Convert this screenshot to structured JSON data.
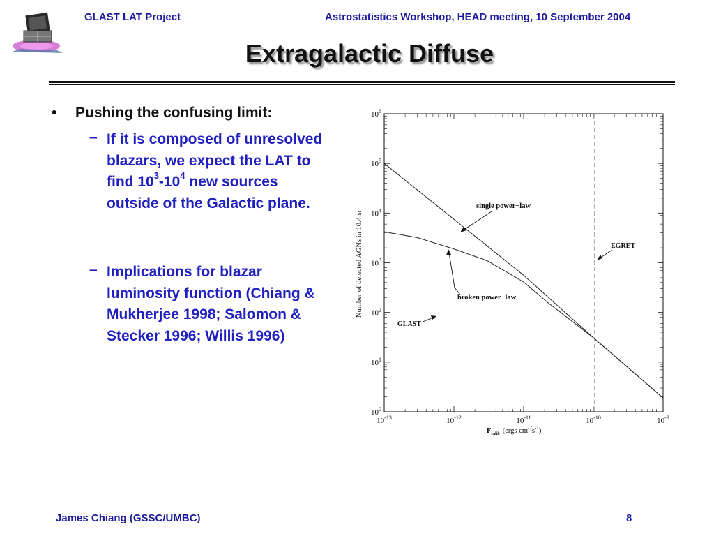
{
  "header": {
    "left": "GLAST LAT Project",
    "right": "Astrostatistics Workshop, HEAD meeting, 10 September 2004"
  },
  "title": "Extragalactic Diffuse",
  "bullet": {
    "symbol": "•",
    "text": "Pushing the confusing limit:",
    "subs": [
      {
        "dash": "–",
        "before": "If it is composed of unresolved blazars, we expect the LAT to find ",
        "base1": "10",
        "exp1": "3",
        "mid": "-",
        "base2": "10",
        "exp2": "4",
        "after": " new sources outside of the Galactic plane."
      },
      {
        "dash": "–",
        "text": "Implications for blazar luminosity function (Chiang & Mukherjee 1998; Salomon & Stecker 1996; Willis 1996)"
      }
    ]
  },
  "footer": {
    "left": "James Chiang (GSSC/UMBC)",
    "right": "8"
  },
  "colors": {
    "header_blue": "#1a1a9e",
    "sub_blue": "#2020c0"
  },
  "chart_data": {
    "type": "line",
    "xscale": "log",
    "yscale": "log",
    "xlim": [
      1e-13,
      1e-09
    ],
    "ylim": [
      1,
      1000000
    ],
    "ylabel": "Number of detected AGNs in 10.4 sr",
    "xlabel_main": "F",
    "xlabel_sub": "calib",
    "xlabel_units": "(ergs cm",
    "xlabel_exp1": "-2",
    "xlabel_s": "s",
    "xlabel_exp2": "-1",
    "xlabel_close": ")",
    "xticks": [
      {
        "base": "10",
        "exp": "-13"
      },
      {
        "base": "10",
        "exp": "-12"
      },
      {
        "base": "10",
        "exp": "-11"
      },
      {
        "base": "10",
        "exp": "-10"
      },
      {
        "base": "10",
        "exp": "-9"
      }
    ],
    "yticks": [
      {
        "base": "10",
        "exp": "0"
      },
      {
        "base": "10",
        "exp": "1"
      },
      {
        "base": "10",
        "exp": "2"
      },
      {
        "base": "10",
        "exp": "3"
      },
      {
        "base": "10",
        "exp": "4"
      },
      {
        "base": "10",
        "exp": "5"
      },
      {
        "base": "10",
        "exp": "6"
      }
    ],
    "series": [
      {
        "x": [
          1e-13,
          1e-12,
          1e-11,
          1e-10,
          1e-09
        ],
        "y": [
          100000,
          7500,
          560,
          31,
          1.9
        ]
      },
      {
        "x": [
          1e-13,
          3e-13,
          1e-12,
          3e-12,
          1e-11,
          2.2e-11,
          1e-10,
          1e-09
        ],
        "y": [
          4200,
          3200,
          1900,
          1100,
          410,
          160,
          31,
          1.9
        ]
      }
    ],
    "vlines": [
      {
        "label": "GLAST",
        "x": 7e-13,
        "style": "dotted"
      },
      {
        "label": "EGRET",
        "x": 1.05e-10,
        "style": "dashed"
      }
    ],
    "annotations": [
      {
        "text": "single power−law"
      },
      {
        "text": "broken power−law"
      },
      {
        "text": "GLAST"
      },
      {
        "text": "EGRET"
      }
    ]
  }
}
